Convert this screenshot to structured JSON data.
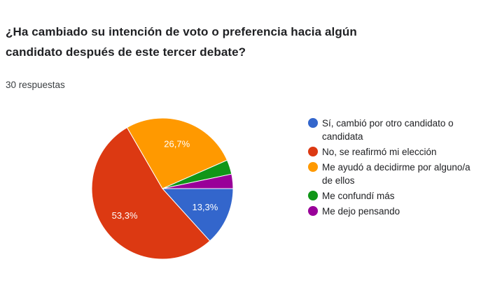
{
  "question": {
    "line1": "¿Ha cambiado su intención de voto o preferencia hacia algún",
    "line2": "candidato después de este tercer debate?"
  },
  "response_count": "30 respuestas",
  "colors": {
    "blue": "#3366cc",
    "red": "#dc3912",
    "orange": "#ff9900",
    "green": "#109618",
    "purple": "#990099"
  },
  "legend": [
    {
      "label": "Sí, cambió por otro candidato o candidata",
      "color": "#3366cc"
    },
    {
      "label": "No, se reafirmó mi elección",
      "color": "#dc3912"
    },
    {
      "label": "Me ayudó a decidirme por alguno/a de ellos",
      "color": "#ff9900"
    },
    {
      "label": "Me confundí más",
      "color": "#109618"
    },
    {
      "label": "Me dejo pensando",
      "color": "#990099"
    }
  ],
  "chart_data": {
    "type": "pie",
    "title": "¿Ha cambiado su intención de voto o preferencia hacia algún candidato después de este tercer debate?",
    "total_responses": 30,
    "slices": [
      {
        "label": "Sí, cambió por otro candidato o candidata",
        "value": 13.3,
        "count": 4,
        "color": "#3366cc",
        "data_label": "13,3%"
      },
      {
        "label": "No, se reafirmó mi elección",
        "value": 53.3,
        "count": 16,
        "color": "#dc3912",
        "data_label": "53,3%"
      },
      {
        "label": "Me ayudó a decidirme por alguno/a de ellos",
        "value": 26.7,
        "count": 8,
        "color": "#ff9900",
        "data_label": "26,7%"
      },
      {
        "label": "Me confundí más",
        "value": 3.3,
        "count": 1,
        "color": "#109618",
        "data_label": ""
      },
      {
        "label": "Me dejo pensando",
        "value": 3.3,
        "count": 1,
        "color": "#990099",
        "data_label": ""
      }
    ],
    "legend_position": "right"
  }
}
